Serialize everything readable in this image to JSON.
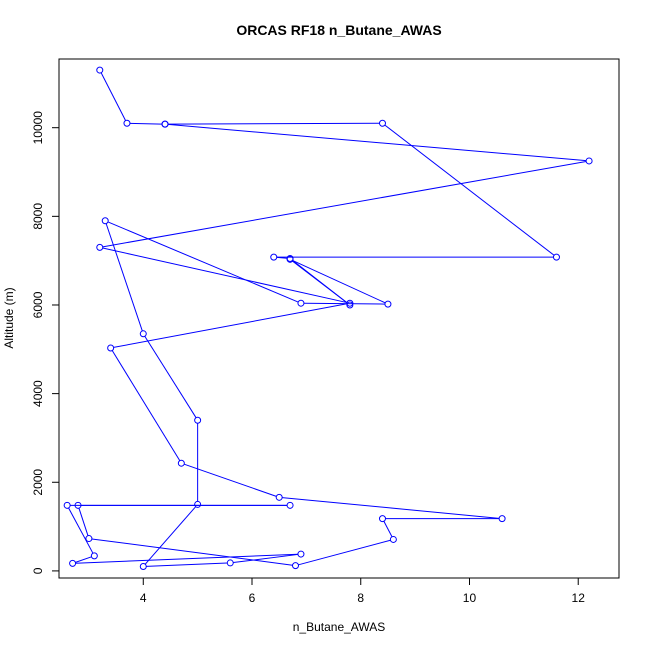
{
  "chart_data": {
    "type": "line",
    "title": "ORCAS RF18 n_Butane_AWAS",
    "xlabel": "n_Butane_AWAS",
    "ylabel": "Altitude (m)",
    "xlim": [
      2.45,
      12.75
    ],
    "ylim": [
      -160,
      11550
    ],
    "xticks": [
      4,
      6,
      8,
      10,
      12
    ],
    "yticks": [
      0,
      2000,
      4000,
      6000,
      8000,
      10000
    ],
    "grid": false,
    "legend": "none",
    "series": [
      {
        "color": "#0000ff",
        "marker": "open-circle",
        "points": [
          {
            "x": 3.2,
            "y": 11300
          },
          {
            "x": 3.7,
            "y": 10100
          },
          {
            "x": 4.4,
            "y": 10080
          },
          {
            "x": 8.4,
            "y": 10100
          },
          {
            "x": 11.6,
            "y": 7080
          },
          {
            "x": 6.4,
            "y": 7080
          },
          {
            "x": 6.7,
            "y": 7050
          },
          {
            "x": 7.8,
            "y": 6000
          },
          {
            "x": 6.7,
            "y": 7030
          },
          {
            "x": 8.5,
            "y": 6020
          },
          {
            "x": 6.9,
            "y": 6040
          },
          {
            "x": 3.3,
            "y": 7900
          },
          {
            "x": 4.0,
            "y": 5350
          },
          {
            "x": 5.0,
            "y": 3400
          },
          {
            "x": 5.0,
            "y": 1500
          },
          {
            "x": 4.0,
            "y": 100
          },
          {
            "x": 5.6,
            "y": 180
          },
          {
            "x": 6.9,
            "y": 380
          },
          {
            "x": 2.7,
            "y": 170
          },
          {
            "x": 3.1,
            "y": 340
          },
          {
            "x": 2.6,
            "y": 1480
          },
          {
            "x": 6.7,
            "y": 1480
          },
          {
            "x": 2.8,
            "y": 1480
          },
          {
            "x": 3.0,
            "y": 730
          },
          {
            "x": 6.8,
            "y": 120
          },
          {
            "x": 8.6,
            "y": 710
          },
          {
            "x": 8.4,
            "y": 1180
          },
          {
            "x": 10.6,
            "y": 1180
          },
          {
            "x": 6.5,
            "y": 1660
          },
          {
            "x": 4.7,
            "y": 2430
          },
          {
            "x": 3.4,
            "y": 5030
          },
          {
            "x": 7.8,
            "y": 6040
          },
          {
            "x": 3.2,
            "y": 7300
          },
          {
            "x": 12.2,
            "y": 9250
          },
          {
            "x": 4.4,
            "y": 10080
          }
        ]
      }
    ]
  }
}
